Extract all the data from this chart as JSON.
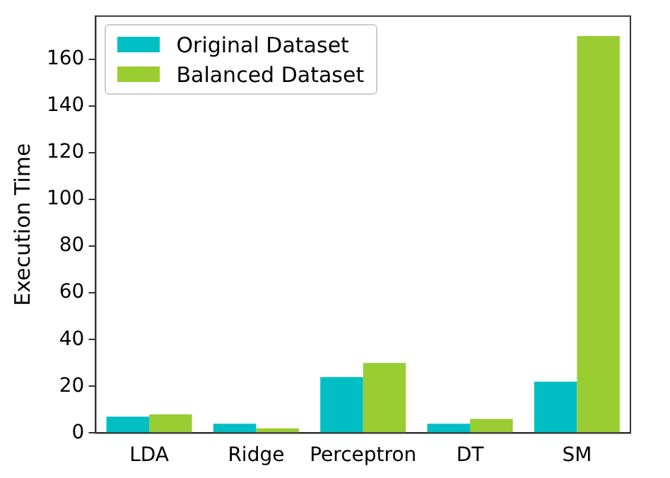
{
  "chart_data": {
    "type": "bar",
    "ylabel": "Execution Time",
    "categories": [
      "LDA",
      "Ridge",
      "Perceptron",
      "DT",
      "SM"
    ],
    "series": [
      {
        "name": "Original Dataset",
        "color": "#00bfc4",
        "values": [
          7,
          4,
          24,
          4,
          22
        ]
      },
      {
        "name": "Balanced Dataset",
        "color": "#9acd32",
        "values": [
          8,
          2,
          30,
          6,
          170
        ]
      }
    ],
    "ylim": [
      0,
      178.5
    ],
    "yticks": [
      0,
      20,
      40,
      60,
      80,
      100,
      120,
      140,
      160
    ],
    "grid": false,
    "legend": "top left"
  }
}
